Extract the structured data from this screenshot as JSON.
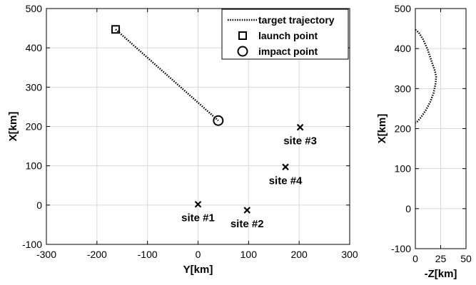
{
  "chart_data": [
    {
      "type": "scatter",
      "xlabel": "Y[km]",
      "ylabel": "X[km]",
      "xlim": [
        -300,
        300
      ],
      "ylim": [
        -100,
        500
      ],
      "xticks": [
        -300,
        -200,
        -100,
        0,
        100,
        200,
        300
      ],
      "yticks": [
        -100,
        0,
        100,
        200,
        300,
        400,
        500
      ],
      "grid": true,
      "legend_position": "top-right",
      "legend": [
        "target trajectory",
        "launch point",
        "impact point"
      ],
      "series": [
        {
          "name": "target trajectory",
          "style": "dotted-line",
          "x": [
            -163,
            40
          ],
          "y": [
            447,
            215
          ]
        },
        {
          "name": "launch point",
          "marker": "square",
          "x": [
            -163
          ],
          "y": [
            447
          ]
        },
        {
          "name": "impact point",
          "marker": "circle",
          "x": [
            40
          ],
          "y": [
            215
          ]
        }
      ],
      "sites": [
        {
          "label": "site #1",
          "x": 0,
          "y": 2
        },
        {
          "label": "site #2",
          "x": 97,
          "y": -13
        },
        {
          "label": "site #3",
          "x": 202,
          "y": 198
        },
        {
          "label": "site #4",
          "x": 173,
          "y": 97
        }
      ]
    },
    {
      "type": "line",
      "xlabel": "-Z[km]",
      "ylabel": "X[km]",
      "xlim": [
        0,
        50
      ],
      "ylim": [
        -100,
        500
      ],
      "xticks": [
        0,
        25,
        50
      ],
      "yticks": [
        -100,
        0,
        100,
        200,
        300,
        400,
        500
      ],
      "grid": true,
      "series": [
        {
          "style": "dotted-line",
          "x": [
            0,
            3.4,
            7.6,
            12.1,
            16.2,
            19.2,
            20.5,
            20.0,
            18.1,
            14.6,
            10.1,
            5.5,
            1.7,
            0
          ],
          "y": [
            447,
            440,
            423,
            398,
            367,
            345,
            330,
            313,
            290,
            266,
            245,
            228,
            217,
            215
          ]
        }
      ]
    }
  ]
}
